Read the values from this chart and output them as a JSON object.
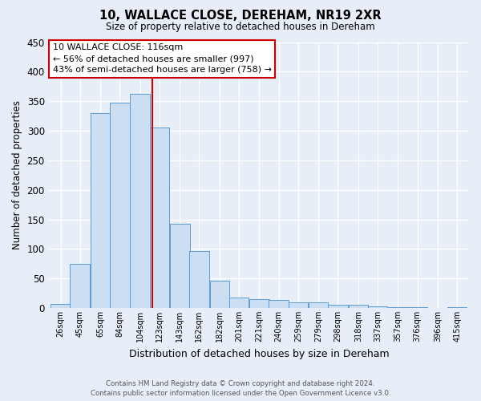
{
  "title": "10, WALLACE CLOSE, DEREHAM, NR19 2XR",
  "subtitle": "Size of property relative to detached houses in Dereham",
  "xlabel": "Distribution of detached houses by size in Dereham",
  "ylabel": "Number of detached properties",
  "bin_labels": [
    "26sqm",
    "45sqm",
    "65sqm",
    "84sqm",
    "104sqm",
    "123sqm",
    "143sqm",
    "162sqm",
    "182sqm",
    "201sqm",
    "221sqm",
    "240sqm",
    "259sqm",
    "279sqm",
    "298sqm",
    "318sqm",
    "337sqm",
    "357sqm",
    "376sqm",
    "396sqm",
    "415sqm"
  ],
  "bin_edges": [
    26,
    45,
    65,
    84,
    104,
    123,
    143,
    162,
    182,
    201,
    221,
    240,
    259,
    279,
    298,
    318,
    337,
    357,
    376,
    396,
    415
  ],
  "bar_heights": [
    7,
    75,
    330,
    348,
    363,
    305,
    142,
    97,
    46,
    18,
    15,
    14,
    10,
    10,
    5,
    5,
    3,
    2,
    1,
    0,
    2
  ],
  "bar_color": "#ccdff2",
  "bar_edge_color": "#5b9bd5",
  "ylim": [
    0,
    450
  ],
  "yticks": [
    0,
    50,
    100,
    150,
    200,
    250,
    300,
    350,
    400,
    450
  ],
  "property_value": 116,
  "vline_color": "#cc0000",
  "annotation_title": "10 WALLACE CLOSE: 116sqm",
  "annotation_line1": "← 56% of detached houses are smaller (997)",
  "annotation_line2": "43% of semi-detached houses are larger (758) →",
  "annotation_box_color": "#ffffff",
  "annotation_box_edge": "#cc0000",
  "footer_line1": "Contains HM Land Registry data © Crown copyright and database right 2024.",
  "footer_line2": "Contains public sector information licensed under the Open Government Licence v3.0.",
  "bg_color": "#e8eef7",
  "plot_bg_color": "#e8eef7"
}
